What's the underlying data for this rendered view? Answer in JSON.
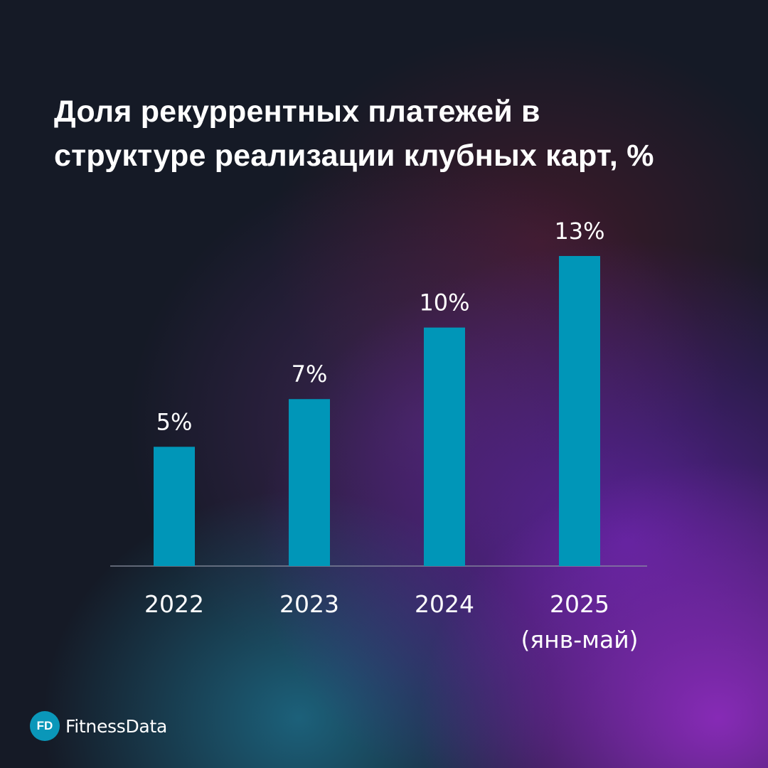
{
  "title_lines": [
    "Доля рекуррентных платежей в",
    "структуре реализации клубных карт, %"
  ],
  "brand": {
    "logo_text": "FD",
    "name": "FitnessData"
  },
  "colors": {
    "bar": "#0096b8",
    "axis": "#8d93a3",
    "text": "#ffffff"
  },
  "chart_data": {
    "type": "bar",
    "title": "Доля рекуррентных платежей в структуре реализации клубных карт, %",
    "categories": [
      [
        "2022"
      ],
      [
        "2023"
      ],
      [
        "2024"
      ],
      [
        "2025",
        "(янв-май)"
      ]
    ],
    "values": [
      5,
      7,
      10,
      13
    ],
    "data_labels": [
      "5%",
      "7%",
      "10%",
      "13%"
    ],
    "ylim": [
      0,
      13
    ],
    "grid": false,
    "legend": "none"
  }
}
